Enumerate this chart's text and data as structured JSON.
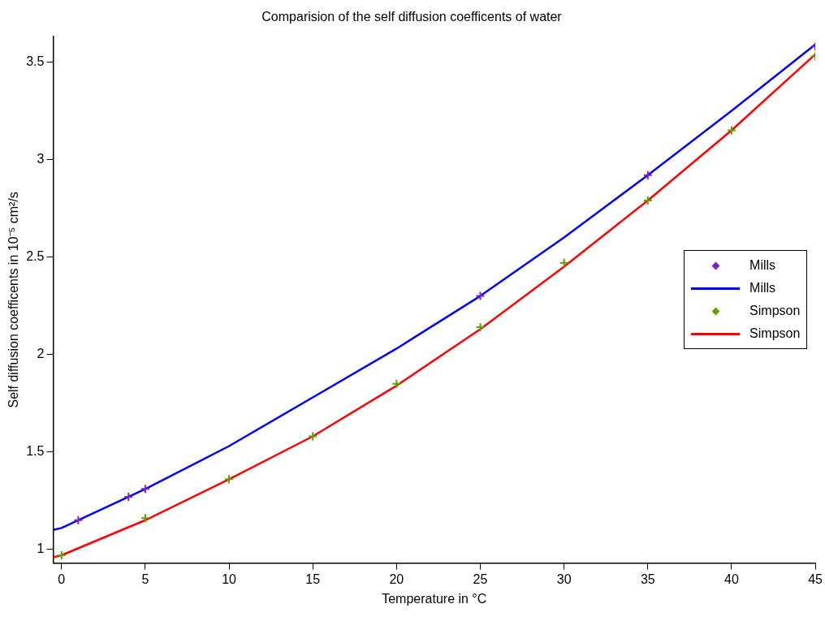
{
  "chart_data": {
    "type": "line",
    "title": "Comparision of the self diffusion coefficents of water",
    "xlabel": "Temperature in °C",
    "ylabel": "Self diffusion coefficents in 10⁻⁵ cm²/s",
    "xlim": [
      -0.5,
      45
    ],
    "xticks": [
      0,
      5,
      10,
      15,
      20,
      25,
      30,
      35,
      40,
      45
    ],
    "ylim": [
      0.93,
      3.63
    ],
    "yticks": [
      1,
      1.5,
      2,
      2.5,
      3,
      3.5
    ],
    "grid": false,
    "legend": "right",
    "series": [
      {
        "name": "Mills",
        "type": "scatter",
        "marker": "cross",
        "color": "#7b1fc8",
        "x": [
          1,
          4,
          5,
          25,
          35,
          45
        ],
        "values": [
          1.15,
          1.27,
          1.31,
          2.3,
          2.92,
          3.58
        ]
      },
      {
        "name": "Mills",
        "marker": "none",
        "color": "#0000ff",
        "x": [
          -0.5,
          0,
          5,
          10,
          15,
          20,
          25,
          30,
          35,
          40,
          45
        ],
        "values": [
          1.1,
          1.11,
          1.31,
          1.53,
          1.78,
          2.03,
          2.3,
          2.6,
          2.92,
          3.25,
          3.59
        ]
      },
      {
        "name": "Simpson",
        "type": "scatter",
        "marker": "cross",
        "color": "#5fa000",
        "x": [
          0,
          5,
          10,
          15,
          20,
          25,
          30,
          35,
          40,
          45
        ],
        "values": [
          0.97,
          1.16,
          1.36,
          1.58,
          1.85,
          2.14,
          2.47,
          2.79,
          3.15,
          3.53
        ]
      },
      {
        "name": "Simpson",
        "marker": "none",
        "color": "#ff0000",
        "x": [
          -0.5,
          0,
          5,
          10,
          15,
          20,
          25,
          30,
          35,
          40,
          45
        ],
        "values": [
          0.96,
          0.97,
          1.15,
          1.36,
          1.58,
          1.84,
          2.13,
          2.45,
          2.79,
          3.15,
          3.54
        ]
      }
    ]
  }
}
